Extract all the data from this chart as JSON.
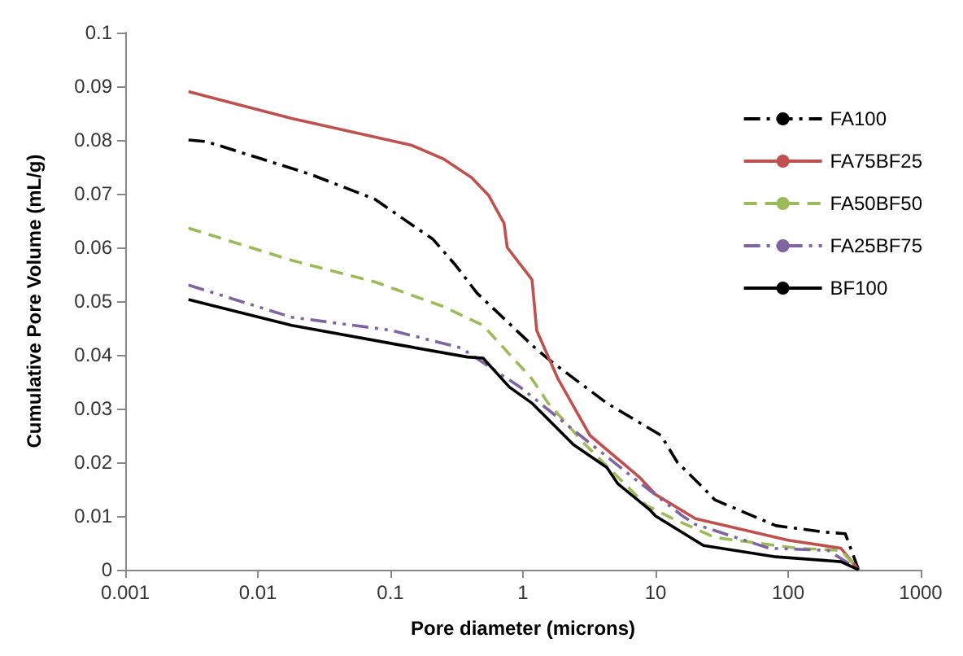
{
  "chart_data": {
    "type": "line",
    "xlabel": "Pore diameter (microns)",
    "ylabel": "Cumulative Pore Volume (mL/g)",
    "log": "x",
    "xlim": [
      0.001,
      1000
    ],
    "xticks": [
      0.001,
      0.01,
      0.1,
      1,
      10,
      100,
      1000
    ],
    "ylim": [
      0,
      0.1
    ],
    "yticks": [
      0,
      0.01,
      0.02,
      0.03,
      0.04,
      0.05,
      0.06,
      0.07,
      0.08,
      0.09,
      0.1
    ],
    "grid": false,
    "legend": "top right",
    "marker": "none",
    "series": [
      {
        "name": "FA100",
        "color": "#000000",
        "line_style": "dashdot",
        "x": [
          0.003,
          0.0041,
          0.025,
          0.076,
          0.21,
          0.31,
          0.45,
          1.27,
          1.69,
          4.3,
          11,
          14.6,
          23,
          28,
          81,
          190,
          270,
          340
        ],
        "values": [
          0.08,
          0.0797,
          0.0736,
          0.069,
          0.0615,
          0.0567,
          0.0515,
          0.041,
          0.0385,
          0.031,
          0.025,
          0.02,
          0.0152,
          0.013,
          0.0082,
          0.007,
          0.0067,
          0
        ]
      },
      {
        "name": "FA75BF25",
        "color": "#c0504d",
        "line_style": "solid",
        "x": [
          0.003,
          0.018,
          0.145,
          0.25,
          0.41,
          0.55,
          0.72,
          0.76,
          1.17,
          1.27,
          1.84,
          3.2,
          7.5,
          10,
          20,
          100,
          250,
          340
        ],
        "values": [
          0.089,
          0.084,
          0.079,
          0.0765,
          0.073,
          0.0697,
          0.0645,
          0.06,
          0.054,
          0.0445,
          0.0355,
          0.025,
          0.0173,
          0.014,
          0.0095,
          0.0055,
          0.004,
          0
        ]
      },
      {
        "name": "FA50BF50",
        "color": "#9bbb59",
        "line_style": "dashed",
        "x": [
          0.003,
          0.018,
          0.076,
          0.25,
          0.5,
          1.17,
          1.55,
          2.95,
          6.3,
          8.5,
          13,
          28,
          117,
          250,
          340
        ],
        "values": [
          0.0636,
          0.0576,
          0.0536,
          0.049,
          0.0455,
          0.0355,
          0.031,
          0.0233,
          0.0152,
          0.012,
          0.0097,
          0.006,
          0.004,
          0.0036,
          0
        ]
      },
      {
        "name": "FA25BF75",
        "color": "#8064a2",
        "line_style": "dashdotdot",
        "x": [
          0.003,
          0.018,
          0.1,
          0.34,
          0.95,
          2.7,
          6.9,
          16,
          19.7,
          72,
          200,
          340
        ],
        "values": [
          0.053,
          0.047,
          0.0446,
          0.0413,
          0.034,
          0.025,
          0.017,
          0.01,
          0.0085,
          0.004,
          0.0036,
          0
        ]
      },
      {
        "name": "BF100",
        "color": "#000000",
        "line_style": "solid",
        "x": [
          0.003,
          0.018,
          0.12,
          0.38,
          0.5,
          0.79,
          1.17,
          2.4,
          4.3,
          5.2,
          9,
          10,
          23,
          81,
          250,
          340
        ],
        "values": [
          0.0503,
          0.0455,
          0.0418,
          0.0396,
          0.0394,
          0.034,
          0.031,
          0.0233,
          0.019,
          0.016,
          0.0112,
          0.01,
          0.0045,
          0.0024,
          0.0015,
          0
        ]
      }
    ]
  }
}
